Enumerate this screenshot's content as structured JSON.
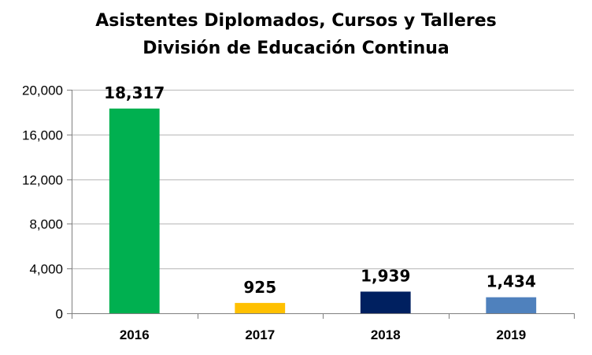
{
  "chart_data": {
    "type": "bar",
    "title_line1": "Asistentes Diplomados, Cursos y Talleres",
    "title_line2": "División de Educación Continua",
    "xlabel": "",
    "ylabel": "",
    "categories": [
      "2016",
      "2017",
      "2018",
      "2019"
    ],
    "values": [
      18317,
      925,
      1939,
      1434
    ],
    "value_labels": [
      "18,317",
      "925",
      "1,939",
      "1,434"
    ],
    "colors": [
      "#00b050",
      "#ffc000",
      "#002060",
      "#4f81bd"
    ],
    "ylim": [
      0,
      20000
    ],
    "yticks": [
      0,
      4000,
      8000,
      12000,
      16000,
      20000
    ],
    "ytick_labels": [
      "0",
      "4,000",
      "8,000",
      "12,000",
      "16,000",
      "20,000"
    ],
    "grid": true,
    "legend": "none"
  }
}
